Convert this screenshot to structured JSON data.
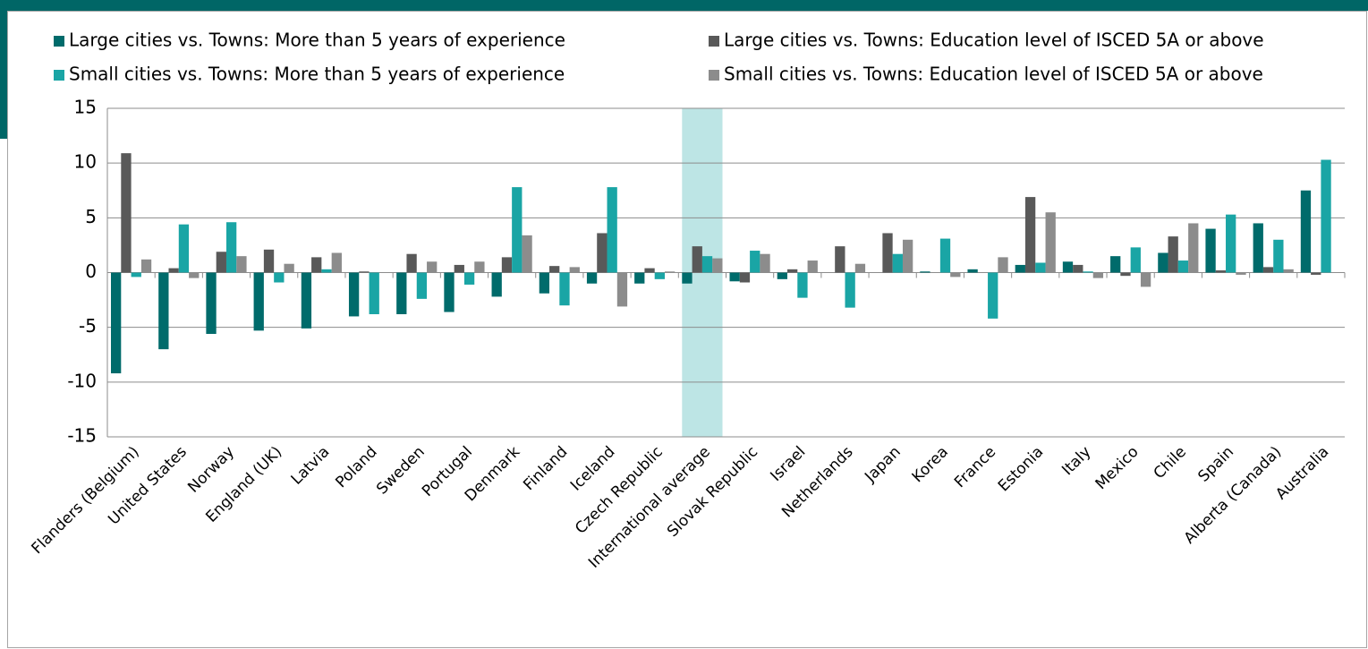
{
  "chart_data": {
    "type": "bar",
    "categories": [
      "Flanders (Belgium)",
      "United States",
      "Norway",
      "England (UK)",
      "Latvia",
      "Poland",
      "Sweden",
      "Portugal",
      "Denmark",
      "Finland",
      "Iceland",
      "Czech Republic",
      "International average",
      "Slovak Republic",
      "Israel",
      "Netherlands",
      "Japan",
      "Korea",
      "France",
      "Estonia",
      "Italy",
      "Mexico",
      "Chile",
      "Spain",
      "Alberta (Canada)",
      "Australia"
    ],
    "series": [
      {
        "name": "Large cities vs. Towns:  More than 5 years of experience",
        "color": "#006b6b",
        "values": [
          -9.2,
          -7.0,
          -5.6,
          -5.3,
          -5.1,
          -4.0,
          -3.8,
          -3.6,
          -2.2,
          -1.9,
          -1.0,
          -1.0,
          -1.0,
          -0.8,
          -0.6,
          0.0,
          0.0,
          0.1,
          0.3,
          0.7,
          1.0,
          1.5,
          1.8,
          4.0,
          4.5,
          7.5
        ]
      },
      {
        "name": "Large cities vs. Towns:  Education level of ISCED 5A or above",
        "color": "#595959",
        "values": [
          10.9,
          0.4,
          1.9,
          2.1,
          1.4,
          0.1,
          1.7,
          0.7,
          1.4,
          0.6,
          3.6,
          0.4,
          2.4,
          -0.9,
          0.3,
          2.4,
          3.6,
          0.0,
          0.0,
          6.9,
          0.7,
          -0.3,
          3.3,
          0.2,
          0.5,
          -0.2
        ]
      },
      {
        "name": "Small cities vs. Towns:  More than 5 years of experience",
        "color": "#1aa5a5",
        "values": [
          -0.4,
          4.4,
          4.6,
          -0.9,
          0.3,
          -3.8,
          -2.4,
          -1.1,
          7.8,
          -3.0,
          7.8,
          -0.6,
          1.5,
          2.0,
          -2.3,
          -3.2,
          1.7,
          3.1,
          -4.2,
          0.9,
          0.1,
          2.3,
          1.1,
          5.3,
          3.0,
          10.3
        ]
      },
      {
        "name": "Small cities vs. Towns:  Education level of ISCED 5A or above",
        "color": "#8c8c8c",
        "values": [
          1.2,
          -0.5,
          1.5,
          0.8,
          1.8,
          0.0,
          1.0,
          1.0,
          3.4,
          0.5,
          -3.1,
          0.1,
          1.3,
          1.7,
          1.1,
          0.8,
          3.0,
          -0.4,
          1.4,
          5.5,
          -0.5,
          -1.3,
          4.5,
          -0.2,
          0.3,
          0.0
        ]
      }
    ],
    "ylim": [
      -15,
      15
    ],
    "yticks": [
      15,
      10,
      5,
      0,
      -5,
      -10,
      -15
    ],
    "grid": true,
    "highlight": 12,
    "highlight_color": "#bde5e5"
  }
}
